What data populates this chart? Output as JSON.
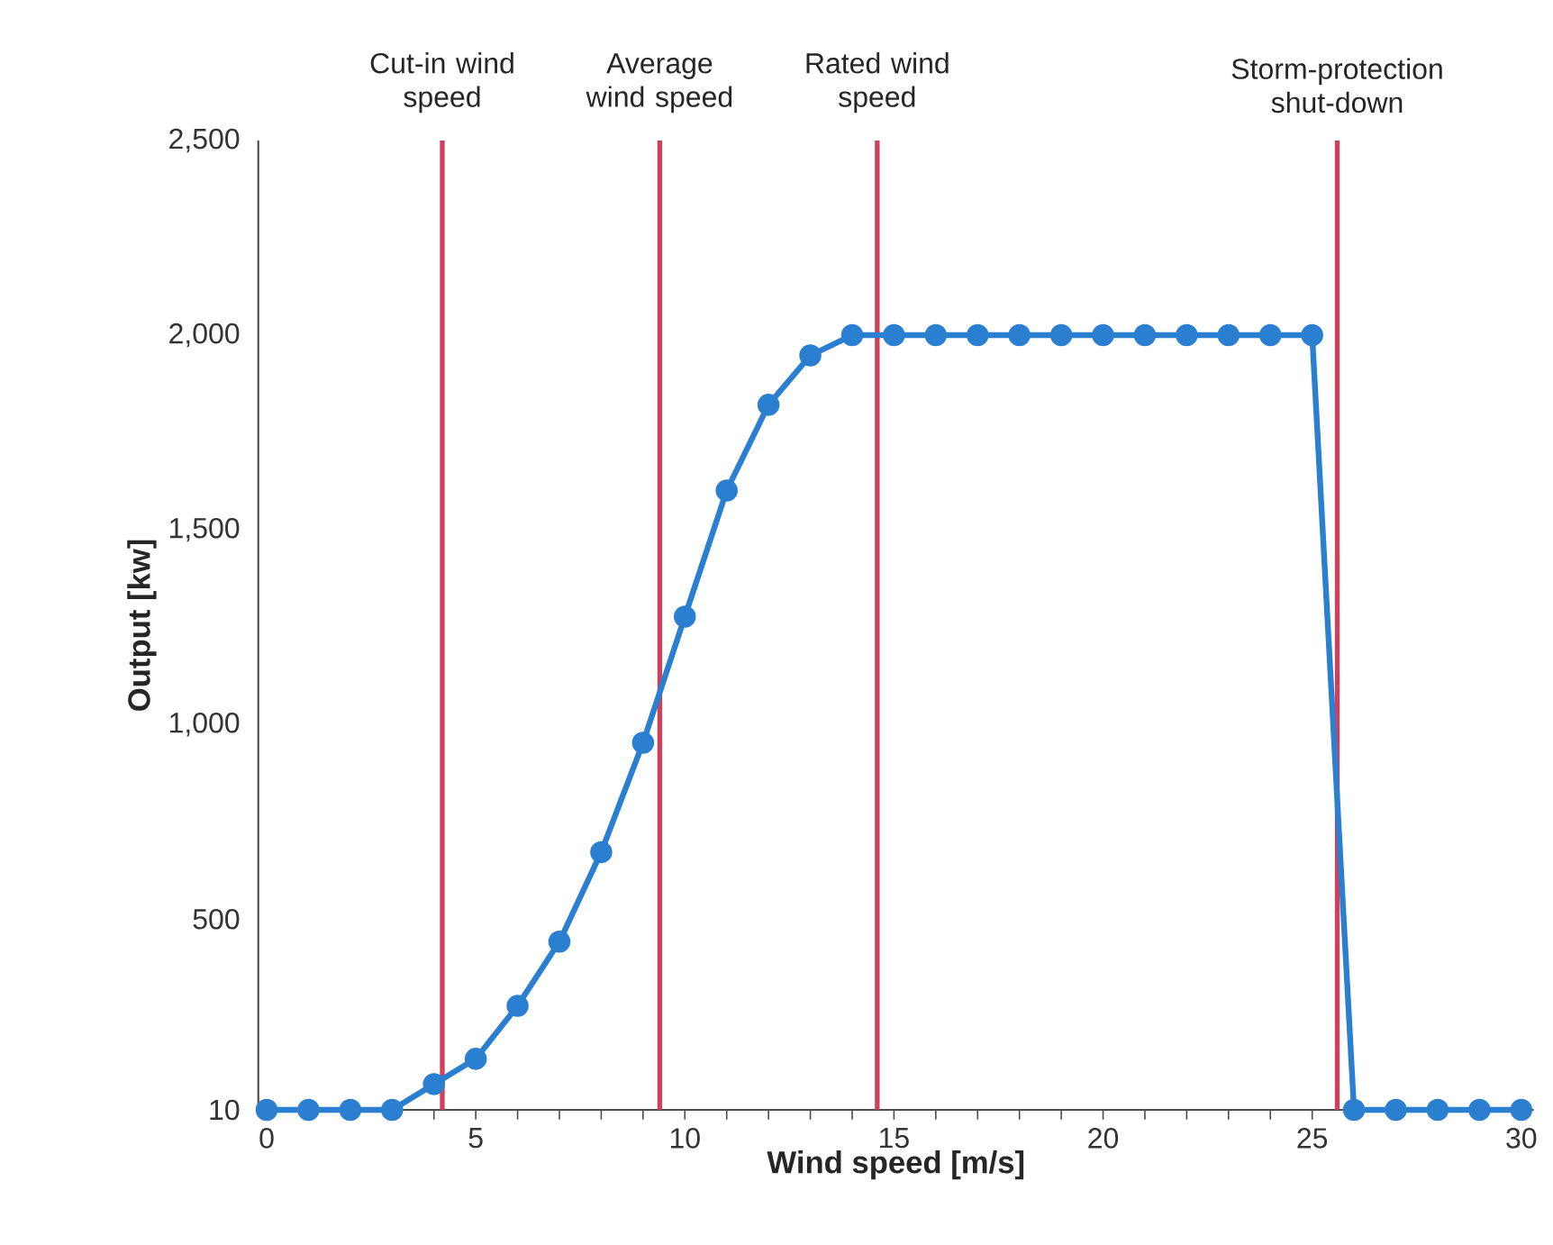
{
  "chart_data": {
    "type": "line",
    "xlabel": "Wind speed [m/s]",
    "ylabel": "Output [kw]",
    "x": [
      0,
      1,
      2,
      3,
      4,
      5,
      6,
      7,
      8,
      9,
      10,
      11,
      12,
      13,
      14,
      15,
      16,
      17,
      18,
      19,
      20,
      21,
      22,
      23,
      24,
      25,
      26,
      27,
      28,
      29,
      30
    ],
    "series": [
      {
        "color": "#2a7fd0",
        "values": [
          10,
          10,
          10,
          10,
          76,
          141,
          277,
          442,
          672,
          953,
          1277,
          1601,
          1821,
          1948,
          2000,
          2000,
          2000,
          2000,
          2000,
          2000,
          2000,
          2000,
          2000,
          2000,
          2000,
          2000,
          10,
          10,
          10,
          10,
          10
        ]
      }
    ],
    "xlim": [
      -0.2,
      30.3
    ],
    "ylim": [
      10,
      2500
    ],
    "xticks": [
      0,
      {
        "value": 1,
        "label": null
      },
      {
        "value": 2,
        "label": null
      },
      {
        "value": 3,
        "label": null
      },
      {
        "value": 4,
        "label": null
      },
      5,
      {
        "value": 6,
        "label": null
      },
      {
        "value": 7,
        "label": null
      },
      {
        "value": 8,
        "label": null
      },
      {
        "value": 9,
        "label": null
      },
      10,
      {
        "value": 11,
        "label": null
      },
      {
        "value": 12,
        "label": null
      },
      {
        "value": 13,
        "label": null
      },
      {
        "value": 14,
        "label": null
      },
      15,
      {
        "value": 16,
        "label": null
      },
      {
        "value": 17,
        "label": null
      },
      {
        "value": 18,
        "label": null
      },
      {
        "value": 19,
        "label": null
      },
      20,
      {
        "value": 21,
        "label": null
      },
      {
        "value": 22,
        "label": null
      },
      {
        "value": 23,
        "label": null
      },
      {
        "value": 24,
        "label": null
      },
      25,
      {
        "value": 26,
        "label": null
      },
      {
        "value": 27,
        "label": null
      },
      {
        "value": 28,
        "label": null
      },
      {
        "value": 29,
        "label": null
      },
      30
    ],
    "yticks": [
      10,
      {
        "value": 500,
        "label": "500"
      },
      {
        "value": 1000,
        "label": "1,000"
      },
      {
        "value": 1500,
        "label": "1,500"
      },
      {
        "value": 2000,
        "label": "2,000"
      },
      {
        "value": 2500,
        "label": "2,500"
      }
    ],
    "ref_lines": [
      {
        "axis": "x",
        "value": 4.2,
        "label": "Cut-in wind speed",
        "color": "#d0405a"
      },
      {
        "axis": "x",
        "value": 9.4,
        "label": "Average wind speed",
        "color": "#d0405a"
      },
      {
        "axis": "x",
        "value": 14.6,
        "label": "Rated wind speed",
        "color": "#d0405a"
      },
      {
        "axis": "x",
        "value": 25.6,
        "label": "Storm-protection shut-down",
        "color": "#d0405a"
      }
    ],
    "marker": "circle",
    "line_style": "solid"
  }
}
